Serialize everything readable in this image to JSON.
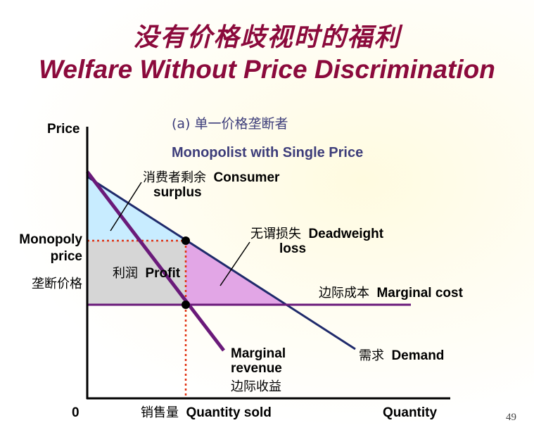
{
  "title_cn": "没有价格歧视时的福利",
  "title_en": "Welfare Without Price Discrimination",
  "subtitle_cn": "(a) 单一价格垄断者",
  "subtitle_en": "Monopolist with Single Price",
  "axes": {
    "y_label": "Price",
    "x_label": "Quantity",
    "origin": "0",
    "x_quantity_sold_cn": "销售量",
    "x_quantity_sold_en": "Quantity sold",
    "y_monopoly_price_line1": "Monopoly",
    "y_monopoly_price_line2": "price",
    "y_monopoly_price_cn": "垄断价格"
  },
  "labels": {
    "consumer_surplus_cn": "消费者剩余",
    "consumer_surplus_en_1": "Consumer",
    "consumer_surplus_en_2": "surplus",
    "deadweight_cn": "无谓损失",
    "deadweight_en_1": "Deadweight",
    "deadweight_en_2": "loss",
    "profit_cn": "利润",
    "profit_en": "Profit",
    "marginal_cost_cn": "边际成本",
    "marginal_cost_en": "Marginal cost",
    "demand_cn": "需求",
    "demand_en": "Demand",
    "marginal_revenue_en_1": "Marginal",
    "marginal_revenue_en_2": "revenue",
    "marginal_revenue_cn": "边际收益"
  },
  "colors": {
    "title": "#8b0a3c",
    "demand": "#1f2a6b",
    "marginal_revenue": "#6a1a7a",
    "marginal_cost": "#6a1a7a",
    "dotted_guides": "#e03010",
    "consumer_surplus_fill": "#c8ecff",
    "profit_fill": "#d6d6d6",
    "deadweight_fill": "#e2a6e6"
  },
  "page_number": "49"
}
